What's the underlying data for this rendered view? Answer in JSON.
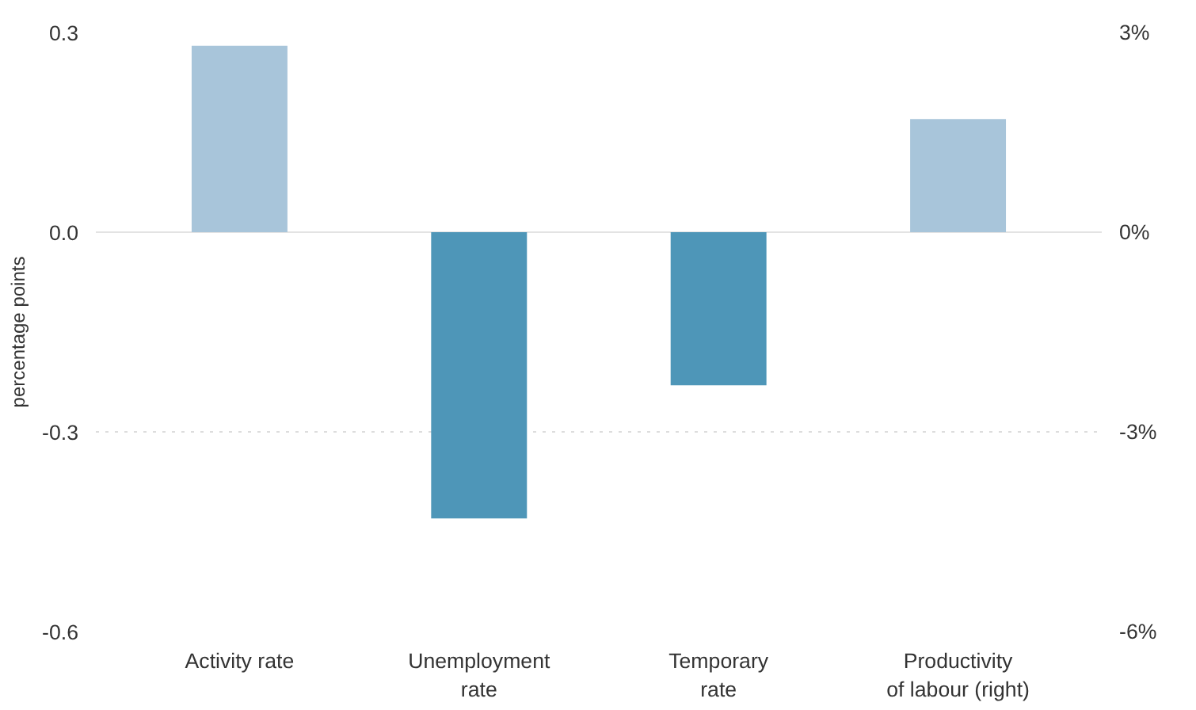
{
  "chart_data": {
    "type": "bar",
    "ylabel": "percentage points",
    "categories": [
      "Activity rate",
      "Unemployment rate",
      "Temporary rate",
      "Productivity of labour (right)"
    ],
    "series": [
      {
        "values": [
          0.28,
          -0.43,
          -0.23,
          null
        ],
        "colors": [
          "#a8c5da",
          "#4e96b8",
          "#4e96b8",
          "#a8c5da"
        ]
      },
      {
        "axis": "y2",
        "values": [
          null,
          null,
          null,
          1.7
        ],
        "color": "#a8c5da"
      }
    ],
    "ylim": [
      -0.6,
      0.3
    ],
    "yticks": [
      {
        "value": -0.6,
        "label": "-0.6"
      },
      {
        "value": -0.3,
        "label": "-0.3"
      },
      {
        "value": 0,
        "label": "0.0"
      },
      {
        "value": 0.3,
        "label": "0.3"
      }
    ],
    "y2lim": [
      -6,
      3
    ],
    "y2ticks": [
      {
        "value": -6,
        "label": "-6%"
      },
      {
        "value": -3,
        "label": "-3%"
      },
      {
        "value": 0,
        "label": "0%"
      },
      {
        "value": 3,
        "label": "3%"
      }
    ],
    "grid": "y",
    "ref_lines": [
      {
        "axis": "y",
        "value": 0,
        "color": "#e3e3e3",
        "line_style": "solid"
      }
    ]
  }
}
